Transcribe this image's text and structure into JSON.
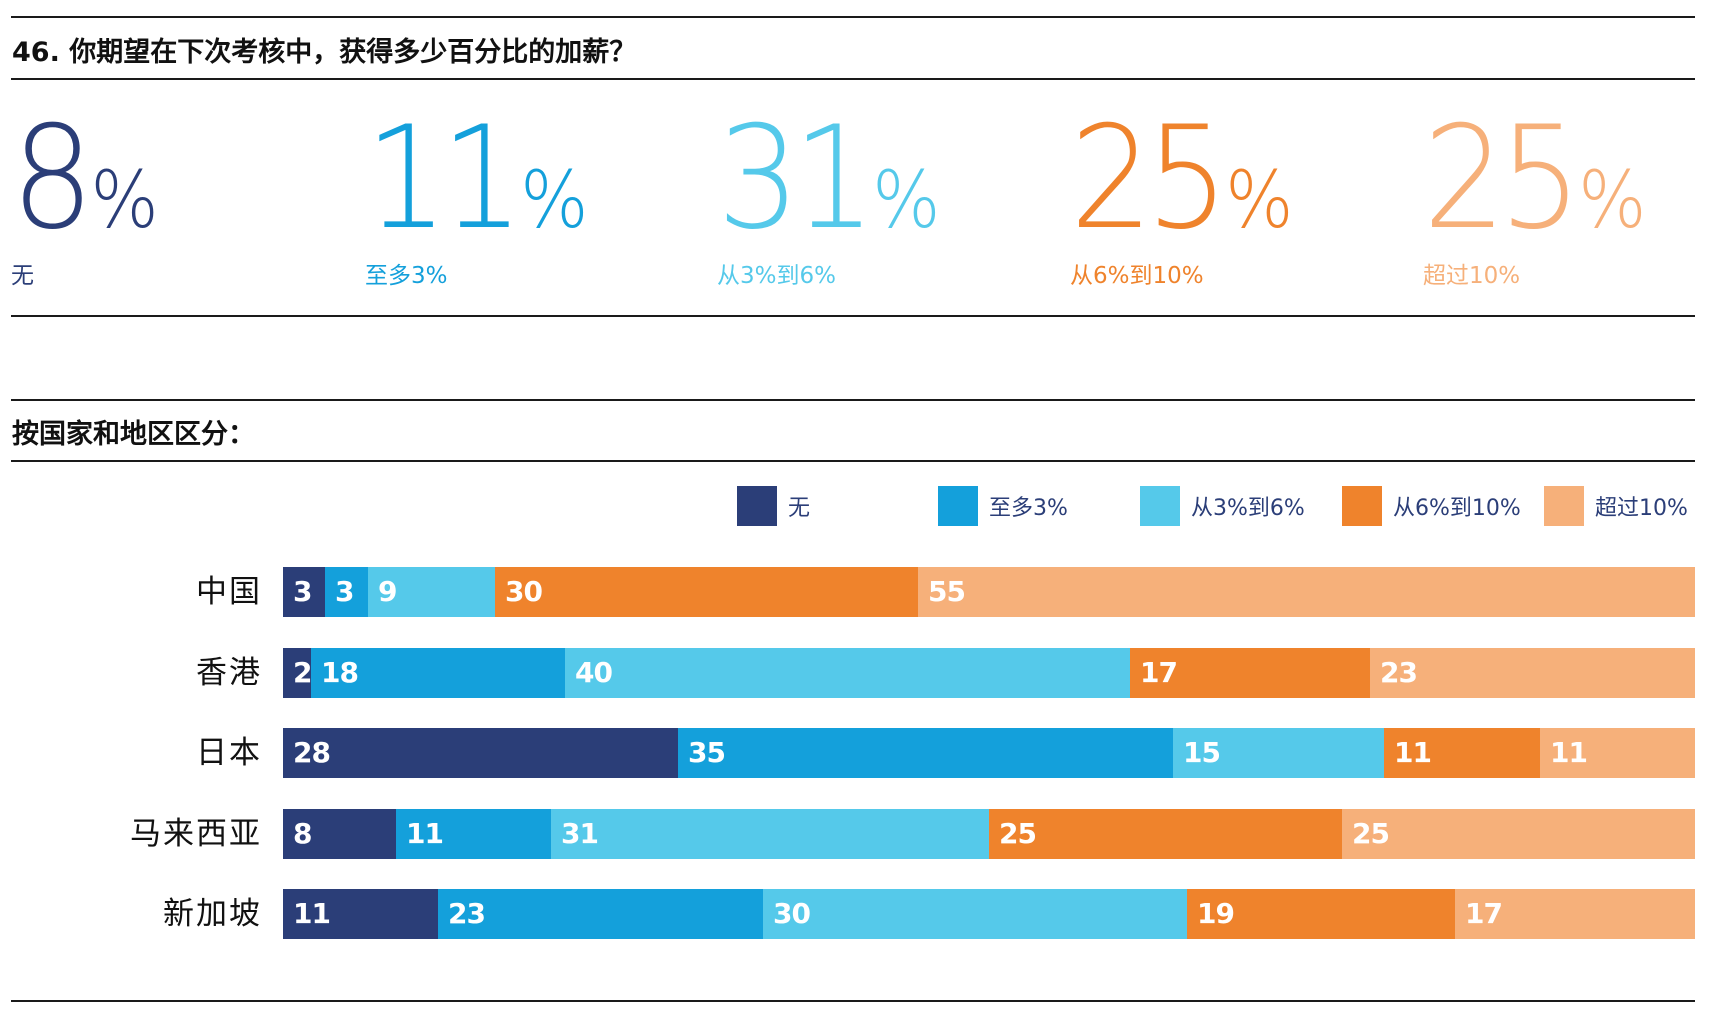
{
  "title": "46. 你期望在下次考核中，获得多少百分比的加薪？",
  "summary": [
    {
      "value": "8",
      "unit": "%",
      "label": "无",
      "color": "#2b3e78"
    },
    {
      "value": "11",
      "unit": "%",
      "label": "至多3%",
      "color": "#14a0db"
    },
    {
      "value": "31",
      "unit": "%",
      "label": "从3%到6%",
      "color": "#55c9ea"
    },
    {
      "value": "25",
      "unit": "%",
      "label": "从6%到10%",
      "color": "#ef832c"
    },
    {
      "value": "25",
      "unit": "%",
      "label": "超过10%",
      "color": "#f6b07a"
    }
  ],
  "section_title": "按国家和地区区分：",
  "chart_data": {
    "type": "bar",
    "orientation": "horizontal",
    "stacked": true,
    "title": "按国家和地区区分：",
    "xlabel": "",
    "ylabel": "",
    "xlim": [
      0,
      100
    ],
    "grid": false,
    "legend_position": "top-right",
    "categories": [
      "中国",
      "香港",
      "日本",
      "马来西亚",
      "新加坡"
    ],
    "series": [
      {
        "name": "无",
        "color": "#2b3e78",
        "values": [
          3,
          2,
          28,
          8,
          11
        ]
      },
      {
        "name": "至多3%",
        "color": "#14a0db",
        "values": [
          3,
          18,
          35,
          11,
          23
        ]
      },
      {
        "name": "从3%到6%",
        "color": "#55c9ea",
        "values": [
          9,
          40,
          15,
          31,
          30
        ]
      },
      {
        "name": "从6%到10%",
        "color": "#ef832c",
        "values": [
          30,
          17,
          11,
          25,
          19
        ]
      },
      {
        "name": "超过10%",
        "color": "#f6b07a",
        "values": [
          55,
          23,
          11,
          25,
          17
        ]
      }
    ]
  }
}
